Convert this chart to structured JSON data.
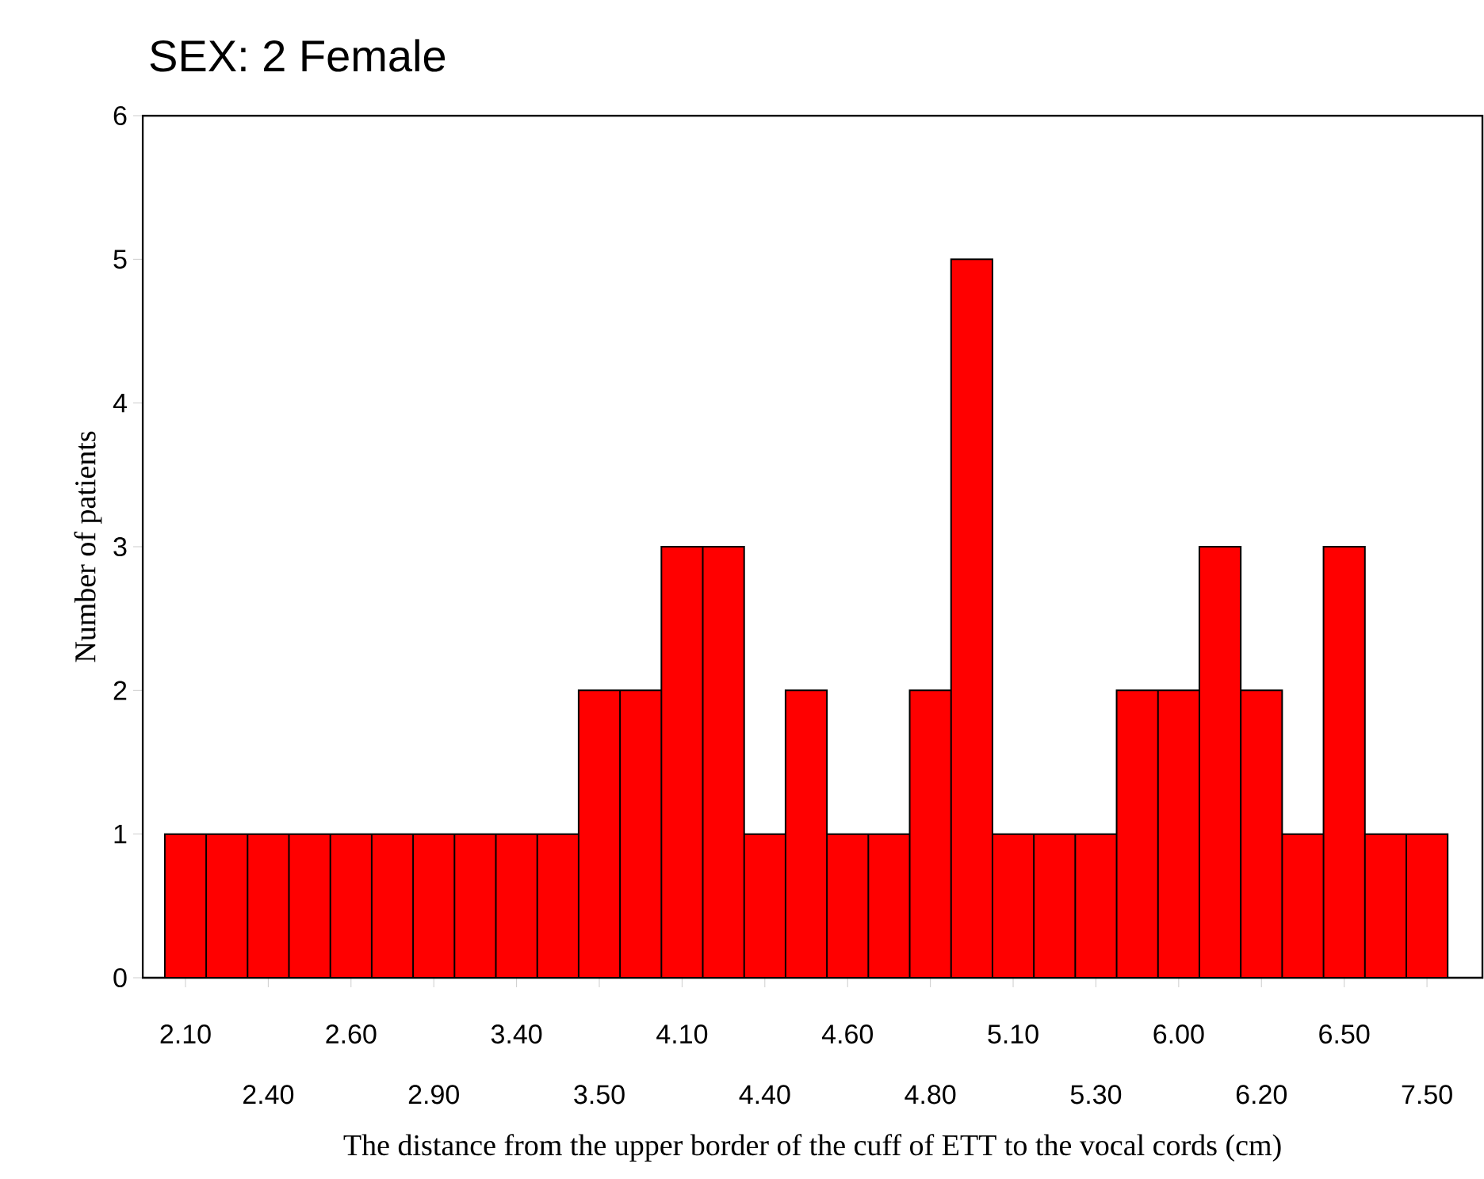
{
  "chart_data": {
    "type": "bar",
    "title": "SEX: 2 Female",
    "xlabel": "The distance from the upper border of the cuff of ETT to the vocal cords (cm)",
    "ylabel": "Number of patients",
    "categories": [
      "2.10",
      null,
      "2.40",
      null,
      "2.60",
      null,
      "2.90",
      null,
      "3.40",
      null,
      "3.50",
      null,
      "4.10",
      null,
      "4.40",
      null,
      "4.60",
      null,
      "4.80",
      null,
      "5.10",
      null,
      "5.30",
      null,
      "6.00",
      null,
      "6.20",
      null,
      "6.50",
      null,
      "7.50"
    ],
    "values": [
      1,
      1,
      1,
      1,
      1,
      1,
      1,
      1,
      1,
      1,
      2,
      2,
      3,
      3,
      1,
      2,
      1,
      1,
      2,
      5,
      1,
      1,
      1,
      2,
      2,
      3,
      2,
      1,
      3,
      1,
      1
    ],
    "color": "#ff0000",
    "ylim": [
      0,
      6
    ],
    "yticks": [
      0,
      1,
      2,
      3,
      4,
      5,
      6
    ]
  }
}
